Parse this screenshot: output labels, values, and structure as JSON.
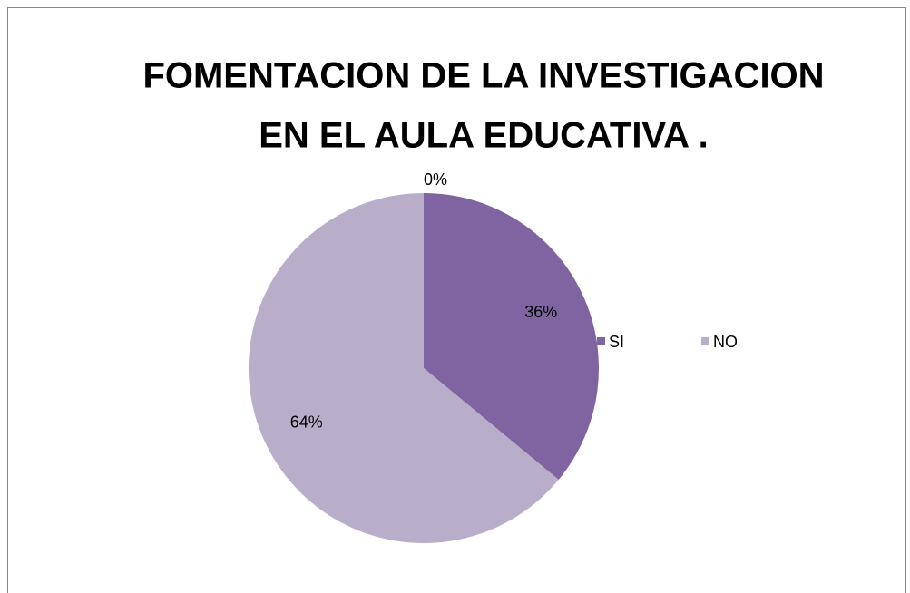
{
  "chart_data": {
    "type": "pie",
    "title": [
      "FOMENTACION DE LA INVESTIGACION",
      "EN EL AULA EDUCATIVA ."
    ],
    "categories": [
      "SI",
      "NO",
      null
    ],
    "values": [
      36,
      64,
      0
    ],
    "value_labels": [
      "36%",
      "64%",
      "0%"
    ],
    "colors": [
      "#8064a2",
      "#b9aeca",
      "#9bbb59"
    ],
    "legend": "right"
  }
}
